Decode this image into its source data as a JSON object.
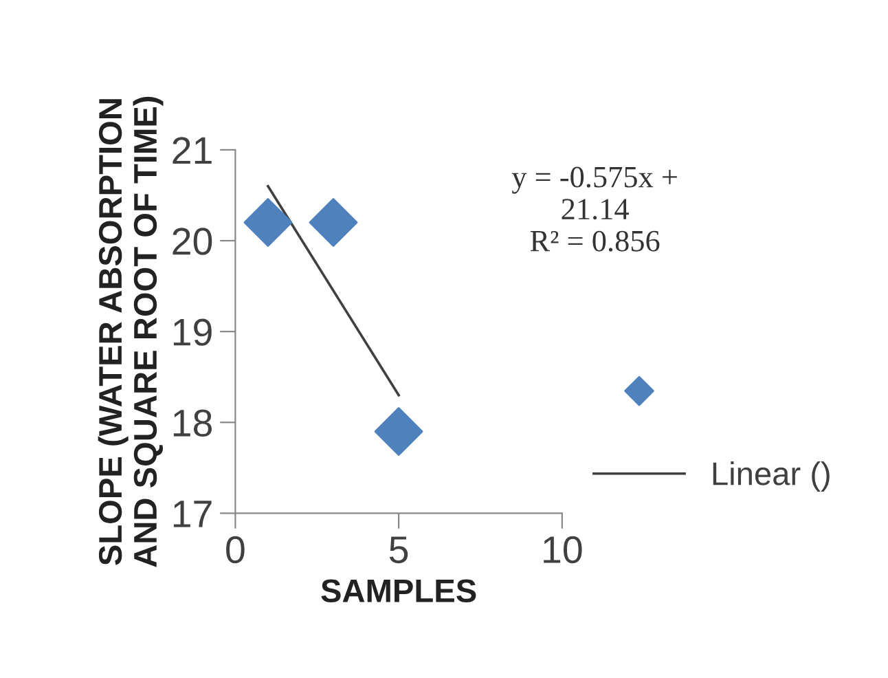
{
  "chart_data": {
    "type": "scatter",
    "xlabel": "SAMPLES",
    "ylabel": "SLOPE (WATER ABSORPTION\nAND SQUARE ROOT OF TIME)",
    "series": [
      {
        "color": "#4f81bd",
        "x": [
          1,
          3,
          5
        ],
        "values": [
          20.2,
          20.2,
          17.9
        ],
        "marker": "diamond"
      },
      {
        "type": "line",
        "name": "Linear ()",
        "color": "#404040",
        "x": [
          1,
          5
        ],
        "values": [
          20.6,
          18.3
        ],
        "line_style": "solid"
      }
    ],
    "annotations": [
      "y = -0.575x +\n21.14\nR² = 0.856"
    ],
    "xlim": [
      0,
      10
    ],
    "xticks": [
      0,
      5,
      10
    ],
    "ylim": [
      17,
      21
    ],
    "yticks": [
      17,
      18,
      19,
      20,
      21
    ],
    "grid": false,
    "legend": "right"
  }
}
